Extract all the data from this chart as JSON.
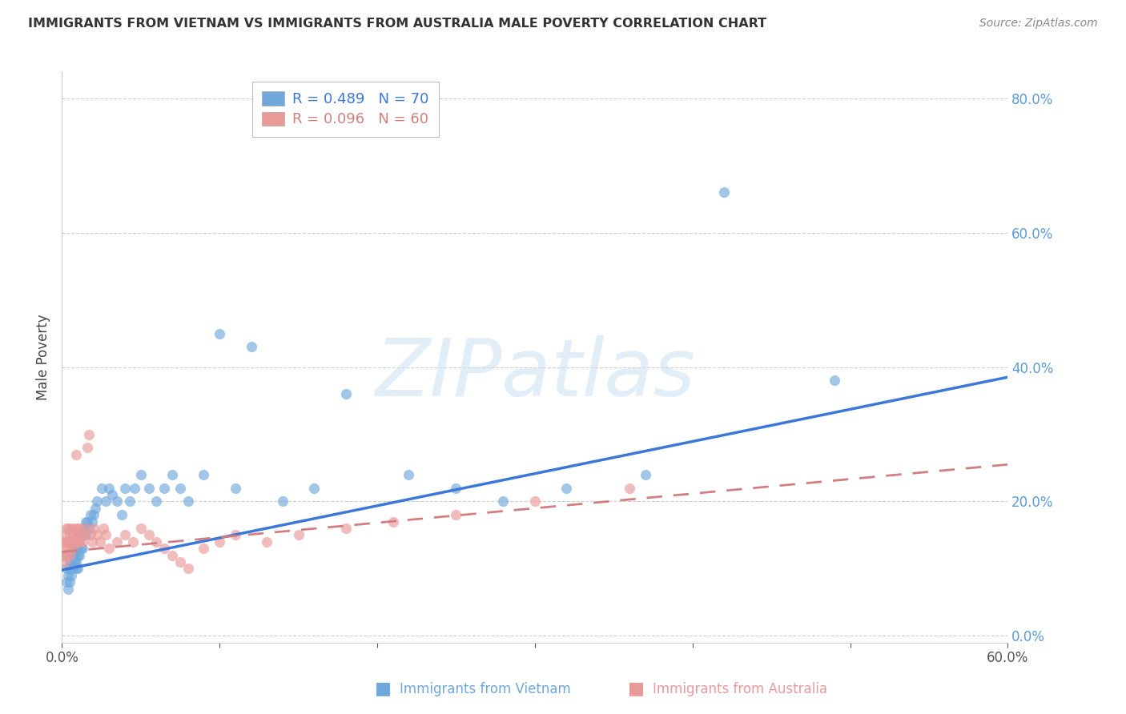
{
  "title": "IMMIGRANTS FROM VIETNAM VS IMMIGRANTS FROM AUSTRALIA MALE POVERTY CORRELATION CHART",
  "source": "Source: ZipAtlas.com",
  "ylabel": "Male Poverty",
  "legend_label1": "Immigrants from Vietnam",
  "legend_label2": "Immigrants from Australia",
  "R1": "0.489",
  "N1": 70,
  "R2": "0.096",
  "N2": 60,
  "color1": "#6fa8dc",
  "color2": "#ea9999",
  "color_trend1": "#3c78d8",
  "color_trend2": "#d08080",
  "xlim": [
    0.0,
    0.6
  ],
  "ylim": [
    -0.01,
    0.84
  ],
  "ytick_vals": [
    0.0,
    0.2,
    0.4,
    0.6,
    0.8
  ],
  "xtick_vals": [
    0.0,
    0.1,
    0.2,
    0.3,
    0.4,
    0.5,
    0.6
  ],
  "background_color": "#ffffff",
  "watermark_text": "ZIPatlas",
  "vietnam_trend_x0": 0.0,
  "vietnam_trend_y0": 0.098,
  "vietnam_trend_x1": 0.6,
  "vietnam_trend_y1": 0.385,
  "australia_trend_x0": 0.0,
  "australia_trend_y0": 0.125,
  "australia_trend_x1": 0.6,
  "australia_trend_y1": 0.255,
  "vietnam_x": [
    0.002,
    0.003,
    0.003,
    0.004,
    0.004,
    0.005,
    0.005,
    0.005,
    0.006,
    0.006,
    0.006,
    0.007,
    0.007,
    0.007,
    0.008,
    0.008,
    0.008,
    0.009,
    0.009,
    0.009,
    0.01,
    0.01,
    0.01,
    0.01,
    0.011,
    0.011,
    0.012,
    0.012,
    0.013,
    0.013,
    0.014,
    0.015,
    0.015,
    0.016,
    0.017,
    0.018,
    0.019,
    0.02,
    0.021,
    0.022,
    0.025,
    0.028,
    0.03,
    0.032,
    0.035,
    0.038,
    0.04,
    0.043,
    0.046,
    0.05,
    0.055,
    0.06,
    0.065,
    0.07,
    0.075,
    0.08,
    0.09,
    0.1,
    0.11,
    0.12,
    0.14,
    0.16,
    0.18,
    0.22,
    0.25,
    0.28,
    0.32,
    0.37,
    0.42,
    0.49
  ],
  "vietnam_y": [
    0.12,
    0.1,
    0.08,
    0.09,
    0.07,
    0.11,
    0.1,
    0.08,
    0.12,
    0.11,
    0.09,
    0.13,
    0.12,
    0.1,
    0.14,
    0.12,
    0.11,
    0.13,
    0.11,
    0.1,
    0.15,
    0.13,
    0.12,
    0.1,
    0.14,
    0.12,
    0.15,
    0.13,
    0.15,
    0.13,
    0.16,
    0.17,
    0.15,
    0.17,
    0.16,
    0.18,
    0.17,
    0.18,
    0.19,
    0.2,
    0.22,
    0.2,
    0.22,
    0.21,
    0.2,
    0.18,
    0.22,
    0.2,
    0.22,
    0.24,
    0.22,
    0.2,
    0.22,
    0.24,
    0.22,
    0.2,
    0.24,
    0.45,
    0.22,
    0.43,
    0.2,
    0.22,
    0.36,
    0.24,
    0.22,
    0.2,
    0.22,
    0.24,
    0.66,
    0.38
  ],
  "australia_x": [
    0.001,
    0.001,
    0.002,
    0.002,
    0.002,
    0.003,
    0.003,
    0.003,
    0.004,
    0.004,
    0.004,
    0.005,
    0.005,
    0.005,
    0.006,
    0.006,
    0.007,
    0.007,
    0.008,
    0.008,
    0.009,
    0.009,
    0.01,
    0.01,
    0.011,
    0.011,
    0.012,
    0.013,
    0.014,
    0.015,
    0.016,
    0.017,
    0.018,
    0.019,
    0.02,
    0.022,
    0.024,
    0.026,
    0.028,
    0.03,
    0.035,
    0.04,
    0.045,
    0.05,
    0.055,
    0.06,
    0.065,
    0.07,
    0.075,
    0.08,
    0.09,
    0.1,
    0.11,
    0.13,
    0.15,
    0.18,
    0.21,
    0.25,
    0.3,
    0.36
  ],
  "australia_y": [
    0.14,
    0.12,
    0.15,
    0.13,
    0.11,
    0.16,
    0.14,
    0.12,
    0.16,
    0.14,
    0.13,
    0.15,
    0.14,
    0.12,
    0.16,
    0.14,
    0.15,
    0.13,
    0.16,
    0.14,
    0.27,
    0.15,
    0.16,
    0.14,
    0.16,
    0.14,
    0.15,
    0.14,
    0.15,
    0.16,
    0.28,
    0.3,
    0.15,
    0.14,
    0.16,
    0.15,
    0.14,
    0.16,
    0.15,
    0.13,
    0.14,
    0.15,
    0.14,
    0.16,
    0.15,
    0.14,
    0.13,
    0.12,
    0.11,
    0.1,
    0.13,
    0.14,
    0.15,
    0.14,
    0.15,
    0.16,
    0.17,
    0.18,
    0.2,
    0.22
  ]
}
